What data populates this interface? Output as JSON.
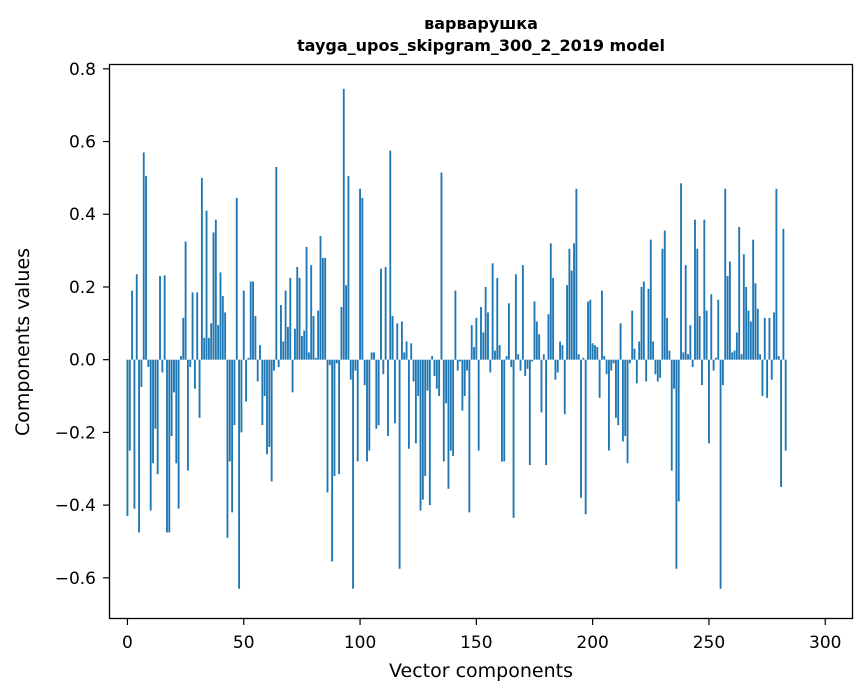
{
  "chart_data": {
    "type": "bar",
    "title": "варварушка",
    "subtitle": "tayga_upos_skipgram_300_2_2019 model",
    "xlabel": "Vector components",
    "ylabel": "Components values",
    "xlim": [
      -7.5,
      311.5
    ],
    "ylim": [
      -0.7105,
      0.8105
    ],
    "xticks": [
      0,
      50,
      100,
      150,
      200,
      250,
      300
    ],
    "yticks": [
      -0.6,
      -0.4,
      -0.2,
      0.0,
      0.2,
      0.4,
      0.6,
      0.8
    ],
    "ytick_labels": [
      "−0.6",
      "−0.4",
      "−0.2",
      "0.0",
      "0.2",
      "0.4",
      "0.6",
      "0.8"
    ],
    "xtick_labels": [
      "0",
      "50",
      "100",
      "150",
      "200",
      "250",
      "300"
    ],
    "bar_color": "#1f77b4",
    "grid": false,
    "series": [
      {
        "name": "варварушка",
        "values": [
          -0.43,
          -0.25,
          0.19,
          -0.41,
          0.235,
          -0.475,
          -0.075,
          0.57,
          0.505,
          -0.02,
          -0.415,
          -0.285,
          -0.19,
          -0.315,
          0.23,
          -0.035,
          0.232,
          -0.475,
          -0.475,
          -0.21,
          -0.09,
          -0.285,
          -0.41,
          0.01,
          0.115,
          0.325,
          -0.305,
          -0.02,
          0.185,
          -0.08,
          0.185,
          -0.16,
          0.5,
          0.06,
          0.41,
          0.06,
          0.1,
          0.35,
          0.385,
          0.095,
          0.24,
          0.175,
          0.13,
          -0.49,
          -0.28,
          -0.42,
          -0.18,
          0.445,
          -0.63,
          -0.2,
          0.19,
          -0.115,
          0.005,
          0.215,
          0.215,
          0.12,
          -0.06,
          0.04,
          -0.18,
          -0.1,
          -0.26,
          -0.24,
          -0.335,
          -0.03,
          0.53,
          -0.02,
          0.15,
          0.05,
          0.19,
          0.09,
          0.225,
          -0.09,
          0.085,
          0.255,
          0.225,
          0.065,
          0.08,
          0.31,
          0.02,
          0.26,
          0.12,
          0.005,
          0.135,
          0.34,
          0.28,
          0.28,
          -0.365,
          -0.015,
          -0.555,
          -0.32,
          -0.01,
          -0.315,
          0.145,
          0.745,
          0.205,
          0.505,
          -0.055,
          -0.63,
          -0.03,
          -0.28,
          0.47,
          0.445,
          -0.07,
          -0.28,
          -0.25,
          0.02,
          0.02,
          -0.19,
          -0.18,
          0.25,
          -0.04,
          0.255,
          -0.21,
          0.575,
          0.12,
          -0.175,
          0.1,
          -0.575,
          0.105,
          0.02,
          0.05,
          -0.245,
          0.045,
          -0.06,
          -0.23,
          -0.1,
          -0.415,
          -0.385,
          -0.32,
          -0.085,
          -0.4,
          0.01,
          -0.045,
          -0.08,
          -0.1,
          0.515,
          -0.28,
          -0.12,
          -0.355,
          -0.25,
          -0.265,
          0.19,
          -0.03,
          -0.005,
          -0.14,
          -0.1,
          -0.03,
          -0.42,
          0.095,
          0.035,
          0.115,
          -0.25,
          0.145,
          0.075,
          0.2,
          0.13,
          -0.035,
          0.265,
          0.025,
          0.225,
          0.04,
          -0.28,
          -0.28,
          0.01,
          0.155,
          -0.02,
          -0.435,
          0.235,
          0.015,
          -0.03,
          0.26,
          -0.045,
          -0.025,
          -0.29,
          -0.005,
          0.16,
          0.105,
          0.07,
          -0.145,
          0.015,
          -0.29,
          0.125,
          0.32,
          0.225,
          -0.055,
          -0.035,
          0.05,
          0.04,
          -0.15,
          0.205,
          0.305,
          0.245,
          0.32,
          0.47,
          0.015,
          -0.38,
          0.005,
          -0.425,
          0.16,
          0.165,
          0.045,
          0.04,
          0.035,
          -0.105,
          0.19,
          0.01,
          -0.04,
          -0.25,
          -0.03,
          -0.01,
          -0.16,
          -0.18,
          0.1,
          -0.225,
          -0.21,
          -0.285,
          -0.01,
          0.135,
          0.03,
          -0.065,
          0.05,
          0.2,
          0.215,
          -0.06,
          0.195,
          0.33,
          0.05,
          -0.04,
          -0.06,
          -0.05,
          0.305,
          0.355,
          0.115,
          0.025,
          -0.305,
          -0.08,
          -0.575,
          -0.39,
          0.485,
          0.02,
          0.26,
          0.015,
          0.095,
          -0.02,
          0.385,
          0.305,
          0.12,
          -0.07,
          0.385,
          0.135,
          -0.23,
          0.18,
          -0.03,
          0.005,
          0.165,
          -0.63,
          -0.07,
          0.47,
          0.23,
          0.27,
          0.02,
          0.025,
          0.075,
          0.365,
          0.015,
          0.29,
          0.2,
          0.135,
          0.105,
          0.33,
          0.21,
          0.14,
          0.015,
          -0.1,
          0.115,
          -0.105,
          0.115,
          -0.055,
          0.13,
          0.47,
          0.01,
          -0.35,
          0.36,
          -0.25
        ]
      }
    ]
  }
}
